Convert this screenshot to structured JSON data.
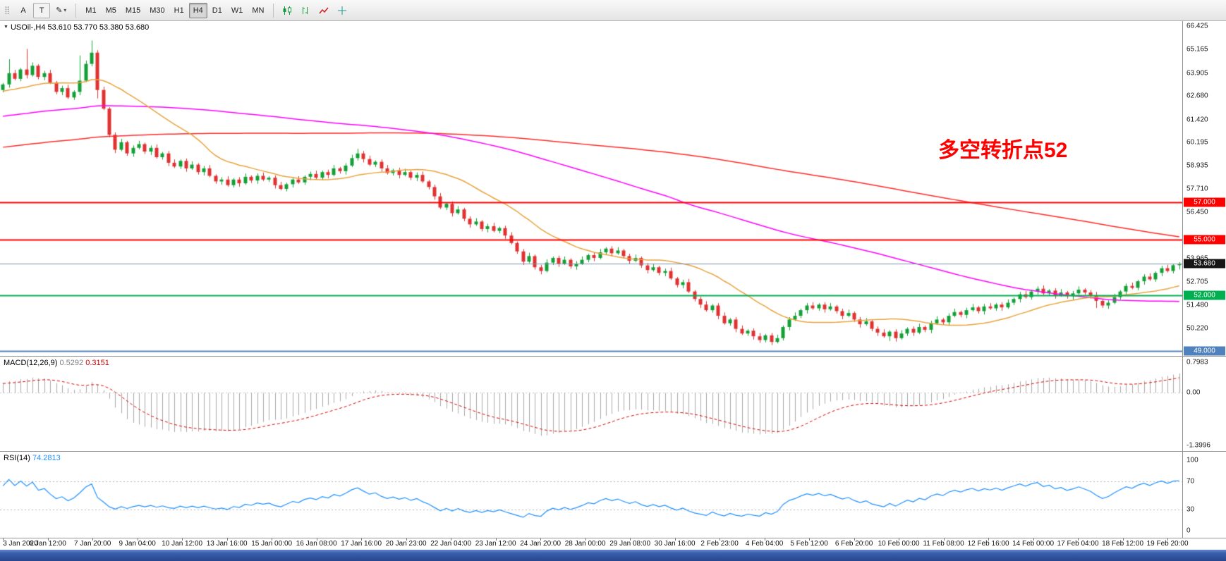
{
  "toolbar": {
    "tools": [
      "A",
      "T"
    ],
    "draw_label": "✎",
    "timeframes": [
      "M1",
      "M5",
      "M15",
      "M30",
      "H1",
      "H4",
      "D1",
      "W1",
      "MN"
    ],
    "active_timeframe": "H4"
  },
  "chart": {
    "header": "USOil-,H4 53.610 53.770 53.380 53.680",
    "annotation": "多空转折点52"
  },
  "macd_panel": {
    "title": "MACD(12,26,9)",
    "value_main": "0.5292",
    "value_signal": "0.3151",
    "axis_top": "0.7983",
    "axis_zero": "0.00",
    "axis_bottom": "-1.3996"
  },
  "rsi_panel": {
    "title": "RSI(14)",
    "value": "74.2813",
    "axis": [
      "100",
      "70",
      "30",
      "0"
    ]
  },
  "chart_data": {
    "type": "candlestick",
    "symbol": "USOil-",
    "timeframe": "H4",
    "last_ohlc": {
      "open": 53.61,
      "high": 53.77,
      "low": 53.38,
      "close": 53.68
    },
    "price_range": [
      48.75,
      66.69
    ],
    "price_ticks": [
      "66.425",
      "65.165",
      "63.905",
      "62.680",
      "61.420",
      "60.195",
      "58.935",
      "57.710",
      "56.450",
      "53.965",
      "52.705",
      "51.480",
      "50.220"
    ],
    "badges": [
      {
        "label": "57.000",
        "value": 57.0,
        "bg": "#ff0000"
      },
      {
        "label": "55.000",
        "value": 55.0,
        "bg": "#ff0000"
      },
      {
        "label": "53.680",
        "value": 53.68,
        "bg": "#161616"
      },
      {
        "label": "52.000",
        "value": 52.0,
        "bg": "#00b050"
      },
      {
        "label": "49.000",
        "value": 49.0,
        "bg": "#4f81bd"
      }
    ],
    "h_lines": [
      {
        "name": "resistance-57",
        "price": 57.0,
        "color": "#ff0000",
        "width": 2
      },
      {
        "name": "resistance-55",
        "price": 55.0,
        "color": "#ff0000",
        "width": 2
      },
      {
        "name": "current-price",
        "price": 53.68,
        "color": "#7a91a8",
        "width": 1
      },
      {
        "name": "support-52",
        "price": 52.0,
        "color": "#00b050",
        "width": 2
      },
      {
        "name": "support-49",
        "price": 49.0,
        "color": "#4f81bd",
        "width": 2
      }
    ],
    "first_open": 63.0,
    "closes": [
      63.3,
      63.9,
      63.6,
      64.1,
      63.8,
      64.3,
      63.7,
      63.9,
      63.4,
      62.9,
      63.1,
      62.6,
      62.9,
      63.5,
      64.4,
      65.0,
      63.0,
      62.0,
      60.6,
      59.8,
      60.2,
      59.6,
      59.9,
      60.1,
      59.7,
      59.9,
      59.4,
      59.6,
      59.1,
      58.9,
      59.2,
      58.8,
      59.0,
      58.6,
      58.8,
      58.4,
      58.1,
      58.2,
      57.9,
      58.2,
      58.0,
      58.35,
      58.15,
      58.4,
      58.2,
      58.3,
      57.9,
      57.7,
      57.95,
      58.2,
      58.05,
      58.35,
      58.5,
      58.3,
      58.6,
      58.45,
      58.8,
      58.65,
      58.95,
      59.35,
      59.6,
      59.3,
      59.0,
      59.15,
      58.8,
      58.55,
      58.7,
      58.45,
      58.6,
      58.3,
      58.45,
      58.1,
      57.8,
      57.3,
      56.7,
      56.9,
      56.4,
      56.6,
      56.1,
      55.8,
      55.95,
      55.55,
      55.7,
      55.45,
      55.6,
      55.2,
      54.8,
      54.35,
      53.8,
      54.1,
      53.5,
      53.3,
      53.75,
      54.0,
      53.7,
      53.9,
      53.55,
      53.7,
      53.9,
      54.15,
      54.0,
      54.3,
      54.5,
      54.25,
      54.4,
      54.1,
      53.85,
      54.0,
      53.6,
      53.35,
      53.5,
      53.2,
      53.3,
      52.9,
      52.55,
      52.7,
      52.2,
      51.8,
      51.5,
      51.2,
      51.45,
      50.9,
      50.5,
      50.7,
      50.2,
      49.95,
      50.1,
      49.8,
      49.6,
      49.85,
      49.5,
      49.7,
      50.3,
      50.7,
      50.9,
      51.2,
      51.45,
      51.3,
      51.5,
      51.25,
      51.4,
      51.15,
      50.9,
      51.05,
      50.7,
      50.45,
      50.6,
      50.2,
      50.0,
      49.8,
      50.05,
      49.7,
      49.95,
      50.2,
      50.0,
      50.3,
      50.15,
      50.5,
      50.7,
      50.55,
      50.9,
      51.1,
      50.95,
      51.2,
      51.35,
      51.15,
      51.4,
      51.3,
      51.5,
      51.35,
      51.6,
      51.8,
      52.05,
      51.9,
      52.2,
      52.35,
      52.1,
      52.25,
      52.0,
      52.15,
      51.95,
      52.1,
      52.3,
      52.15,
      52.0,
      51.7,
      51.45,
      51.6,
      51.9,
      52.2,
      52.5,
      52.4,
      52.75,
      53.0,
      52.85,
      53.2,
      53.45,
      53.3,
      53.61,
      53.68
    ],
    "wick_overrides": {
      "1": {
        "high": 64.65
      },
      "4": {
        "high": 65.2
      },
      "13": {
        "high": 64.85
      },
      "15": {
        "high": 65.65
      },
      "16": {
        "low": 62.55
      },
      "60": {
        "high": 59.85
      },
      "128": {
        "low": 49.45
      },
      "130": {
        "low": 49.33
      },
      "150": {
        "low": 49.55
      },
      "185": {
        "low": 51.32
      },
      "199": {
        "high": 53.77,
        "low": 53.38
      }
    },
    "ma_seed": {
      "start": 56.6,
      "end": 63.2,
      "count": 200
    },
    "moving_averages": [
      {
        "name": "ma-slow",
        "period": 200,
        "color": "#ff2a2a"
      },
      {
        "name": "ma-medium",
        "period": 100,
        "color": "#ff00ff"
      },
      {
        "name": "ma-fast",
        "period": 20,
        "color": "#e8a33d"
      }
    ],
    "colors": {
      "up": "#14a037",
      "down": "#e03232",
      "macd_hist": "#a8a8a8",
      "macd_signal": "#d40000",
      "rsi_line": "#1e90ff",
      "annotation": "#ff0000"
    },
    "macd": {
      "params": [
        12,
        26,
        9
      ],
      "range": [
        -1.3996,
        0.7983
      ],
      "last_main": 0.5292,
      "last_signal": 0.3151
    },
    "rsi": {
      "period": 14,
      "levels": [
        70,
        30
      ],
      "range": [
        0,
        100
      ],
      "last": 74.2813
    },
    "time_labels": [
      "3 Jan 2020",
      "6 Jan 12:00",
      "7 Jan 20:00",
      "9 Jan 04:00",
      "10 Jan 12:00",
      "13 Jan 16:00",
      "15 Jan 00:00",
      "16 Jan 08:00",
      "17 Jan 16:00",
      "20 Jan 23:00",
      "22 Jan 04:00",
      "23 Jan 12:00",
      "24 Jan 20:00",
      "28 Jan 00:00",
      "29 Jan 08:00",
      "30 Jan 16:00",
      "2 Feb 23:00",
      "4 Feb 04:00",
      "5 Feb 12:00",
      "6 Feb 20:00",
      "10 Feb 00:00",
      "11 Feb 08:00",
      "12 Feb 16:00",
      "14 Feb 00:00",
      "17 Feb 04:00",
      "18 Feb 12:00",
      "19 Feb 20:00"
    ]
  }
}
